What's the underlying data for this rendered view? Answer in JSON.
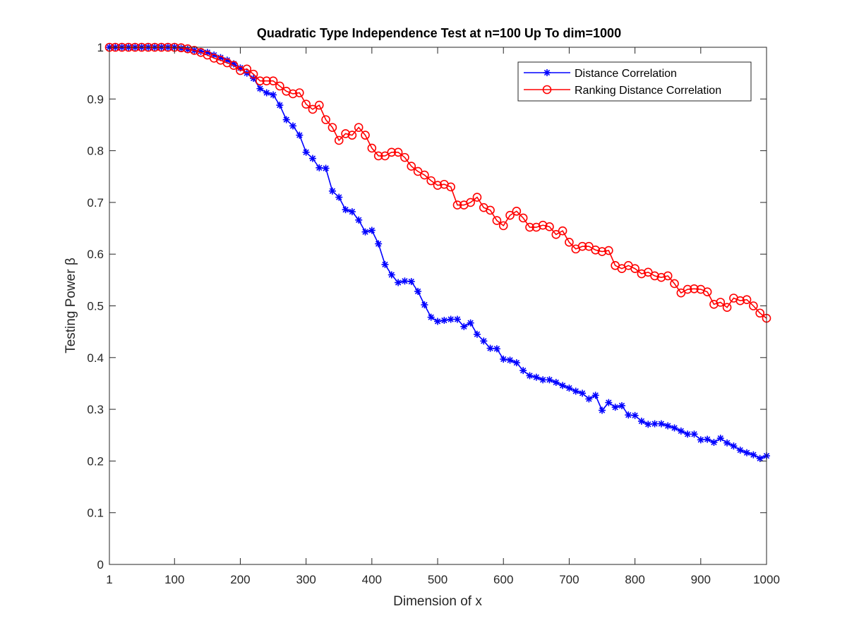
{
  "chart_data": {
    "type": "line",
    "title": "Quadratic Type Independence Test at n=100 Up To dim=1000",
    "xlabel": "Dimension of x",
    "ylabel": "Testing Power β",
    "xlim": [
      1,
      1000
    ],
    "ylim": [
      0,
      1
    ],
    "xticks": [
      1,
      100,
      200,
      300,
      400,
      500,
      600,
      700,
      800,
      900,
      1000
    ],
    "xtick_labels": [
      "1",
      "100",
      "200",
      "300",
      "400",
      "500",
      "600",
      "700",
      "800",
      "900",
      "1000"
    ],
    "yticks": [
      0,
      0.1,
      0.2,
      0.3,
      0.4,
      0.5,
      0.6,
      0.7,
      0.8,
      0.9,
      1
    ],
    "ytick_labels": [
      "0",
      "0.1",
      "0.2",
      "0.3",
      "0.4",
      "0.5",
      "0.6",
      "0.7",
      "0.8",
      "0.9",
      "1"
    ],
    "grid": false,
    "legend_position": "top-right",
    "x": [
      1,
      10,
      20,
      30,
      40,
      50,
      60,
      70,
      80,
      90,
      100,
      110,
      120,
      130,
      140,
      150,
      160,
      170,
      180,
      190,
      200,
      210,
      220,
      230,
      240,
      250,
      260,
      270,
      280,
      290,
      300,
      310,
      320,
      330,
      340,
      350,
      360,
      370,
      380,
      390,
      400,
      410,
      420,
      430,
      440,
      450,
      460,
      470,
      480,
      490,
      500,
      510,
      520,
      530,
      540,
      550,
      560,
      570,
      580,
      590,
      600,
      610,
      620,
      630,
      640,
      650,
      660,
      670,
      680,
      690,
      700,
      710,
      720,
      730,
      740,
      750,
      760,
      770,
      780,
      790,
      800,
      810,
      820,
      830,
      840,
      850,
      860,
      870,
      880,
      890,
      900,
      910,
      920,
      930,
      940,
      950,
      960,
      970,
      980,
      990,
      1000
    ],
    "series": [
      {
        "name": "Distance Correlation",
        "color": "#0000ff",
        "marker": "asterisk",
        "values": [
          1,
          1,
          1,
          1,
          1,
          1,
          1,
          1,
          1,
          1,
          1,
          0.998,
          0.996,
          0.994,
          0.992,
          0.99,
          0.985,
          0.98,
          0.975,
          0.968,
          0.96,
          0.95,
          0.94,
          0.92,
          0.912,
          0.908,
          0.888,
          0.86,
          0.848,
          0.83,
          0.797,
          0.785,
          0.767,
          0.766,
          0.722,
          0.71,
          0.686,
          0.682,
          0.666,
          0.643,
          0.646,
          0.62,
          0.58,
          0.56,
          0.545,
          0.548,
          0.547,
          0.528,
          0.502,
          0.478,
          0.47,
          0.472,
          0.474,
          0.474,
          0.46,
          0.467,
          0.445,
          0.432,
          0.418,
          0.417,
          0.397,
          0.395,
          0.39,
          0.375,
          0.365,
          0.362,
          0.357,
          0.357,
          0.352,
          0.346,
          0.341,
          0.335,
          0.331,
          0.32,
          0.327,
          0.298,
          0.313,
          0.304,
          0.307,
          0.289,
          0.288,
          0.277,
          0.271,
          0.272,
          0.272,
          0.268,
          0.264,
          0.258,
          0.252,
          0.252,
          0.241,
          0.242,
          0.236,
          0.244,
          0.235,
          0.229,
          0.221,
          0.216,
          0.212,
          0.205,
          0.21
        ]
      },
      {
        "name": "Ranking Distance Correlation",
        "color": "#ff0000",
        "marker": "circle",
        "values": [
          1,
          1,
          1,
          1,
          1,
          1,
          1,
          1,
          1,
          1,
          1,
          0.999,
          0.997,
          0.994,
          0.99,
          0.985,
          0.979,
          0.975,
          0.97,
          0.965,
          0.955,
          0.958,
          0.948,
          0.935,
          0.935,
          0.935,
          0.925,
          0.915,
          0.91,
          0.912,
          0.89,
          0.88,
          0.888,
          0.86,
          0.845,
          0.82,
          0.833,
          0.83,
          0.845,
          0.83,
          0.805,
          0.79,
          0.79,
          0.797,
          0.797,
          0.787,
          0.77,
          0.76,
          0.753,
          0.742,
          0.733,
          0.735,
          0.73,
          0.695,
          0.695,
          0.7,
          0.71,
          0.69,
          0.685,
          0.665,
          0.655,
          0.675,
          0.683,
          0.67,
          0.652,
          0.652,
          0.656,
          0.653,
          0.638,
          0.645,
          0.623,
          0.61,
          0.615,
          0.615,
          0.608,
          0.605,
          0.607,
          0.578,
          0.572,
          0.578,
          0.572,
          0.562,
          0.565,
          0.558,
          0.555,
          0.558,
          0.543,
          0.525,
          0.532,
          0.533,
          0.532,
          0.527,
          0.503,
          0.507,
          0.497,
          0.515,
          0.51,
          0.512,
          0.5,
          0.486,
          0.476
        ]
      }
    ]
  }
}
